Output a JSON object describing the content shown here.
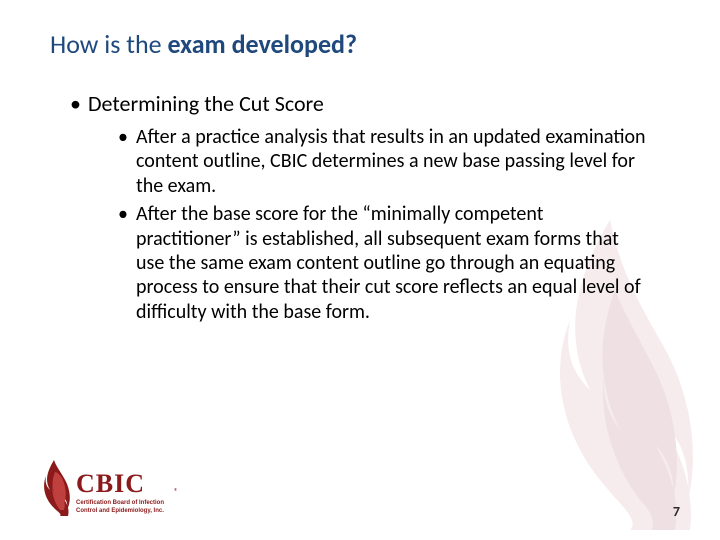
{
  "title_html": "How is the <b>exam developed?</b>",
  "bullets": {
    "l1": "Determining the Cut Score",
    "l2a": "After a practice analysis that results in an updated examination content outline, CBIC determines a new base passing level for the exam.",
    "l2b": "After the base score for the “minimally competent practitioner” is established, all subsequent exam forms that use the same exam content outline go through an equating process to ensure that their cut score reflects an equal level of difficulty with the base form."
  },
  "logo": {
    "acronym": "CBIC",
    "line1": "Certification Board of Infection",
    "line2": "Control and Epidemiology, Inc.",
    "reg": "®",
    "brand_color": "#8b1a1a"
  },
  "flame": {
    "color_light": "#e8c9cf",
    "color_dark": "#d0a8b0"
  },
  "page_number": "7",
  "colors": {
    "title": "#1f497d",
    "text": "#000000",
    "bg": "#ffffff"
  },
  "typography": {
    "title_fontsize": 26,
    "l1_fontsize": 22,
    "l2_fontsize": 20,
    "pagenum_fontsize": 14
  }
}
